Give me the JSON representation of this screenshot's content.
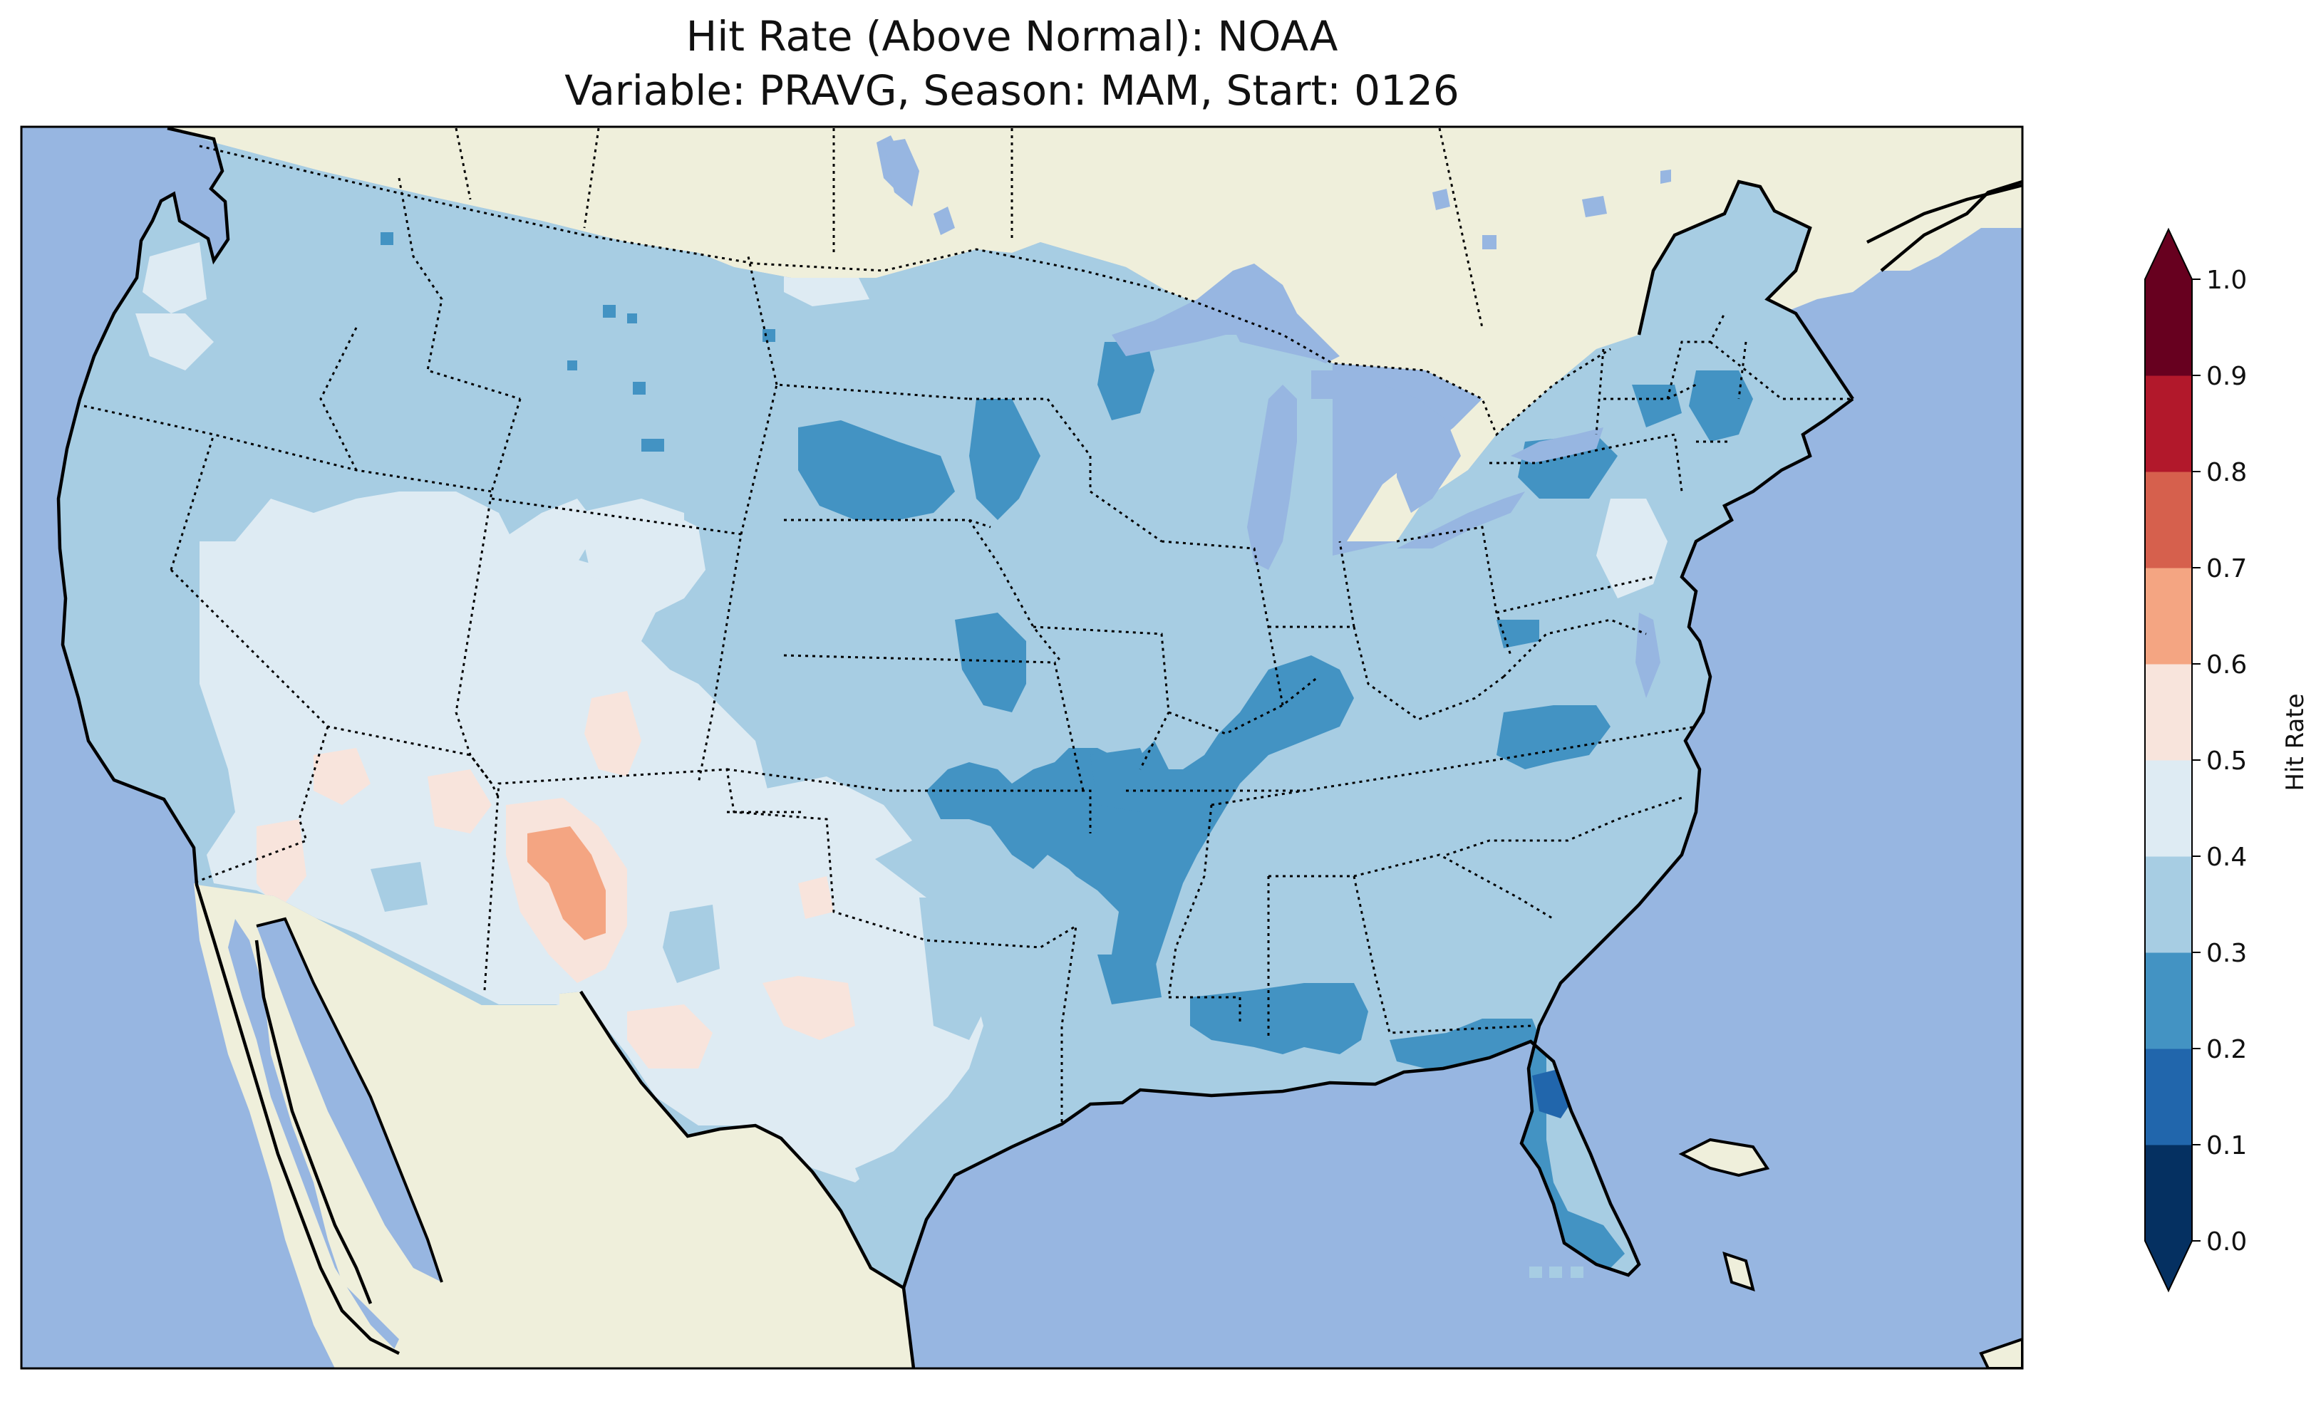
{
  "title": {
    "line1": "Hit Rate (Above Normal): NOAA",
    "line2": "Variable: PRAVG, Season: MAM, Start: 0126"
  },
  "colorbar": {
    "label": "Hit Rate",
    "ticks": [
      "0.0",
      "0.1",
      "0.2",
      "0.3",
      "0.4",
      "0.5",
      "0.6",
      "0.7",
      "0.8",
      "0.9",
      "1.0"
    ],
    "levels": [
      {
        "range": "0.0-0.1",
        "color": "#053061"
      },
      {
        "range": "0.1-0.2",
        "color": "#2166ac"
      },
      {
        "range": "0.2-0.3",
        "color": "#4393c3"
      },
      {
        "range": "0.3-0.4",
        "color": "#a7cde3"
      },
      {
        "range": "0.4-0.5",
        "color": "#deebf3"
      },
      {
        "range": "0.5-0.6",
        "color": "#f8e4dc"
      },
      {
        "range": "0.6-0.7",
        "color": "#f4a582"
      },
      {
        "range": "0.7-0.8",
        "color": "#d6604d"
      },
      {
        "range": "0.8-0.9",
        "color": "#b2182b"
      },
      {
        "range": "0.9-1.0",
        "color": "#67001f"
      }
    ],
    "extend_colors": {
      "under": "#053061",
      "over": "#67001f"
    }
  },
  "map": {
    "ocean_color": "#97b6e1",
    "land_color": "#efefdb",
    "region": "CONUS"
  }
}
